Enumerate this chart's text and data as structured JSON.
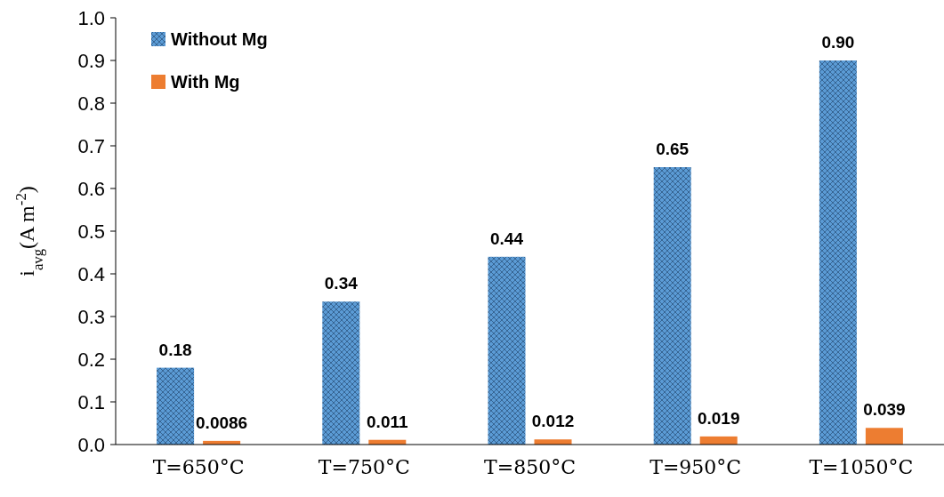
{
  "chart_data": {
    "type": "bar",
    "ylabel": "i$_{avg}$(A m$^{-2}$)",
    "categories": [
      "T=650°C",
      "T=750°C",
      "T=850°C",
      "T=950°C",
      "T=1050°C"
    ],
    "series": [
      {
        "name": "Without Mg",
        "color": "#5b9bd5",
        "values": [
          0.18,
          0.335,
          0.44,
          0.65,
          0.9
        ],
        "value_labels": [
          "0.18",
          "0.34",
          "0.44",
          "0.65",
          "0.90"
        ]
      },
      {
        "name": "With Mg",
        "color": "#ed7d31",
        "values": [
          0.0086,
          0.011,
          0.012,
          0.019,
          0.039
        ],
        "value_labels": [
          "0.0086",
          "0.011",
          "0.012",
          "0.019",
          "0.039"
        ]
      }
    ],
    "ylim": [
      0,
      1
    ],
    "yticks": [
      {
        "value": 0,
        "label": "0.0"
      },
      0.1,
      0.2,
      0.3,
      0.4,
      0.5,
      0.6,
      0.7,
      0.8,
      0.9,
      {
        "value": 1,
        "label": "1.0"
      }
    ],
    "grid": false,
    "legend": "top left"
  }
}
